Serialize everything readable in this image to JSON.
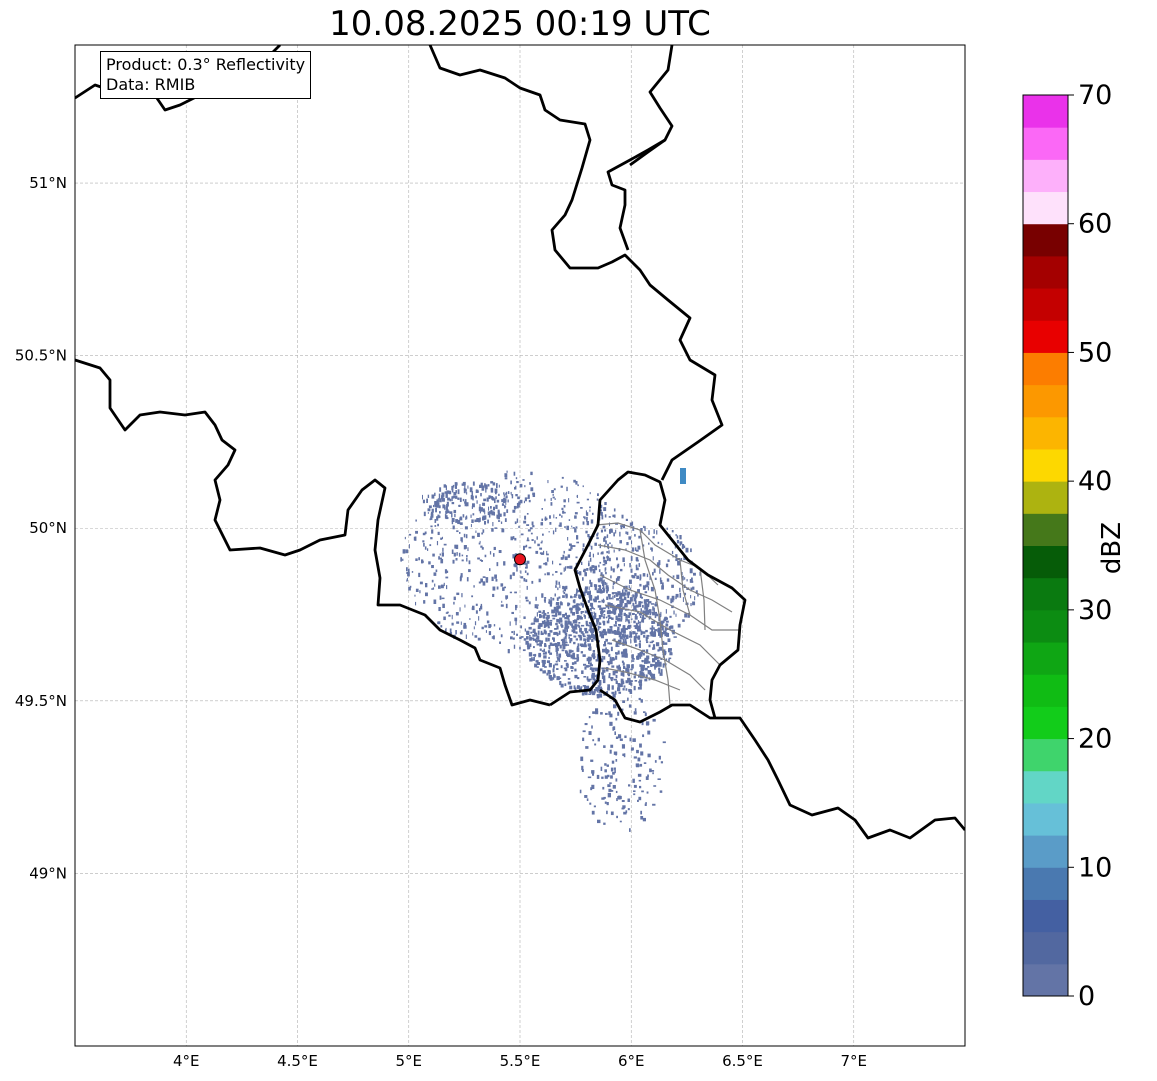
{
  "title": "10.08.2025 00:19 UTC",
  "info_box": {
    "product": "Product: 0.3° Reflectivity",
    "data": "Data: RMIB"
  },
  "map": {
    "lon_range": [
      3.5,
      7.5
    ],
    "lat_range": [
      48.5,
      51.4
    ],
    "lon_ticks": [
      "4°E",
      "4.5°E",
      "5°E",
      "5.5°E",
      "6°E",
      "6.5°E",
      "7°E"
    ],
    "lat_ticks": [
      "49°N",
      "49.5°N",
      "50°N",
      "50.5°N",
      "51°N"
    ],
    "radar_site": {
      "lon": 5.5,
      "lat": 49.91,
      "color": "#e8141e"
    },
    "echo_color": "#6374a6",
    "light_echo_color": "#3f8ac4"
  },
  "colorbar": {
    "label": "dBZ",
    "ticks": [
      "0",
      "10",
      "20",
      "30",
      "40",
      "50",
      "60",
      "70"
    ],
    "min": 0,
    "max": 70,
    "step": 2.5,
    "colors": [
      "#6374a6",
      "#5268a0",
      "#4460a2",
      "#4a79b0",
      "#5a9cc8",
      "#66c0d8",
      "#62d6c6",
      "#3fd46c",
      "#12cc1a",
      "#10bc14",
      "#0fa614",
      "#0c8c12",
      "#0a7a10",
      "#065c08",
      "#45781a",
      "#adb310",
      "#fdd800",
      "#fcb500",
      "#fc9800",
      "#fc7d00",
      "#e80000",
      "#c40000",
      "#a40000",
      "#780000",
      "#fee1fb",
      "#fdb0fa",
      "#fb68f6",
      "#ea32ea"
    ]
  }
}
